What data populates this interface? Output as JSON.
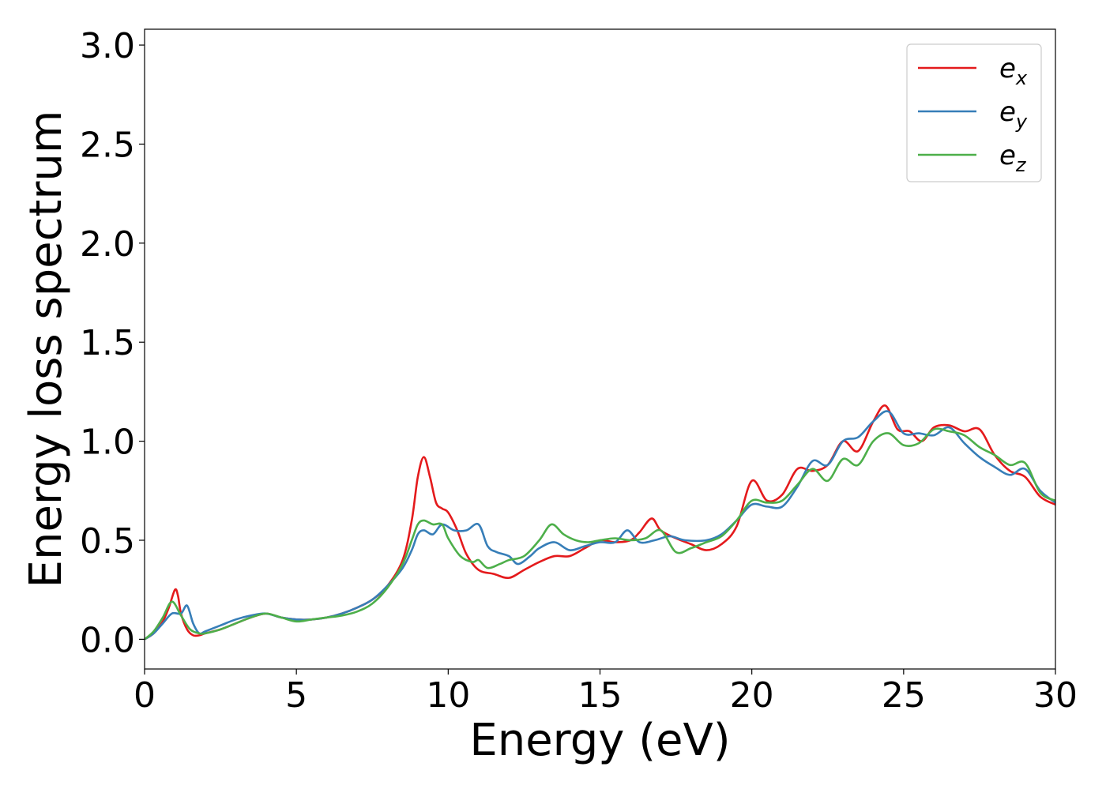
{
  "chart_data": {
    "type": "line",
    "title": "",
    "xlabel": "Energy (eV)",
    "ylabel": "Energy loss spectrum",
    "xlim": [
      0,
      30
    ],
    "ylim": [
      -0.15,
      3.08
    ],
    "xticks": [
      0,
      5,
      10,
      15,
      20,
      25,
      30
    ],
    "xtick_labels": [
      "0",
      "5",
      "10",
      "15",
      "20",
      "25",
      "30"
    ],
    "yticks": [
      0.0,
      0.5,
      1.0,
      1.5,
      2.0,
      2.5,
      3.0
    ],
    "ytick_labels": [
      "0.0",
      "0.5",
      "1.0",
      "1.5",
      "2.0",
      "2.5",
      "3.0"
    ],
    "grid": false,
    "legend_position": "top-right",
    "series": [
      {
        "name": "e_x",
        "legend_base": "e",
        "legend_sub": "x",
        "color": "#e41a1c",
        "x": [
          0,
          0.3,
          0.6,
          0.8,
          1.0,
          1.1,
          1.2,
          1.4,
          1.6,
          1.8,
          2.0,
          2.5,
          3.0,
          3.5,
          4.0,
          4.5,
          5.0,
          5.5,
          6.0,
          6.5,
          7.0,
          7.5,
          8.0,
          8.5,
          8.8,
          9.0,
          9.2,
          9.4,
          9.6,
          9.8,
          10.0,
          10.3,
          10.6,
          11.0,
          11.5,
          12.0,
          12.5,
          13.0,
          13.5,
          14.0,
          14.5,
          15.0,
          15.5,
          16.0,
          16.3,
          16.7,
          17.0,
          17.5,
          18.0,
          18.5,
          19.0,
          19.5,
          20.0,
          20.5,
          21.0,
          21.5,
          22.0,
          22.5,
          23.0,
          23.5,
          24.0,
          24.4,
          24.8,
          25.2,
          25.6,
          26.0,
          26.5,
          27.0,
          27.5,
          28.0,
          28.5,
          29.0,
          29.5,
          30.0
        ],
        "y": [
          0.0,
          0.03,
          0.09,
          0.16,
          0.25,
          0.22,
          0.13,
          0.05,
          0.02,
          0.02,
          0.03,
          0.05,
          0.08,
          0.11,
          0.13,
          0.11,
          0.1,
          0.1,
          0.11,
          0.13,
          0.16,
          0.2,
          0.27,
          0.4,
          0.6,
          0.82,
          0.92,
          0.82,
          0.69,
          0.66,
          0.64,
          0.55,
          0.43,
          0.35,
          0.33,
          0.31,
          0.35,
          0.39,
          0.42,
          0.42,
          0.46,
          0.5,
          0.49,
          0.5,
          0.54,
          0.61,
          0.55,
          0.51,
          0.48,
          0.45,
          0.48,
          0.57,
          0.8,
          0.7,
          0.73,
          0.86,
          0.85,
          0.88,
          1.0,
          0.95,
          1.1,
          1.18,
          1.06,
          1.05,
          1.0,
          1.07,
          1.08,
          1.05,
          1.06,
          0.93,
          0.85,
          0.82,
          0.72,
          0.68
        ]
      },
      {
        "name": "e_y",
        "legend_base": "e",
        "legend_sub": "y",
        "color": "#377eb8",
        "x": [
          0,
          0.3,
          0.6,
          0.9,
          1.2,
          1.4,
          1.6,
          1.8,
          2.0,
          2.5,
          3.0,
          3.5,
          4.0,
          4.5,
          5.0,
          5.5,
          6.0,
          6.5,
          7.0,
          7.5,
          8.0,
          8.5,
          8.8,
          9.0,
          9.2,
          9.5,
          9.8,
          10.2,
          10.6,
          11.0,
          11.3,
          11.6,
          12.0,
          12.3,
          12.7,
          13.0,
          13.5,
          14.0,
          14.5,
          15.0,
          15.5,
          15.9,
          16.3,
          16.8,
          17.3,
          17.8,
          18.5,
          19.0,
          19.5,
          20.0,
          20.5,
          21.0,
          21.5,
          22.0,
          22.5,
          23.0,
          23.5,
          24.0,
          24.5,
          25.0,
          25.5,
          26.0,
          26.5,
          27.0,
          27.5,
          28.0,
          28.5,
          29.0,
          29.5,
          30.0
        ],
        "y": [
          0.0,
          0.03,
          0.08,
          0.13,
          0.13,
          0.17,
          0.08,
          0.03,
          0.04,
          0.07,
          0.1,
          0.12,
          0.13,
          0.11,
          0.1,
          0.1,
          0.11,
          0.13,
          0.16,
          0.2,
          0.27,
          0.36,
          0.45,
          0.53,
          0.55,
          0.53,
          0.58,
          0.55,
          0.55,
          0.58,
          0.47,
          0.44,
          0.42,
          0.38,
          0.42,
          0.46,
          0.49,
          0.45,
          0.47,
          0.49,
          0.49,
          0.55,
          0.49,
          0.5,
          0.52,
          0.5,
          0.5,
          0.53,
          0.6,
          0.68,
          0.67,
          0.67,
          0.77,
          0.9,
          0.88,
          1.0,
          1.02,
          1.1,
          1.15,
          1.04,
          1.04,
          1.03,
          1.07,
          0.99,
          0.92,
          0.87,
          0.83,
          0.86,
          0.75,
          0.69
        ]
      },
      {
        "name": "e_z",
        "legend_base": "e",
        "legend_sub": "z",
        "color": "#4daf4a",
        "x": [
          0,
          0.3,
          0.6,
          0.9,
          1.2,
          1.5,
          1.8,
          2.0,
          2.5,
          3.0,
          3.5,
          4.0,
          4.5,
          5.0,
          5.5,
          6.0,
          6.5,
          7.0,
          7.5,
          8.0,
          8.5,
          8.8,
          9.0,
          9.2,
          9.5,
          9.8,
          10.0,
          10.4,
          10.8,
          11.0,
          11.3,
          11.7,
          12.0,
          12.5,
          13.0,
          13.4,
          13.8,
          14.2,
          14.6,
          15.0,
          15.5,
          16.0,
          16.5,
          17.0,
          17.5,
          18.0,
          18.5,
          19.0,
          19.5,
          20.0,
          20.5,
          21.0,
          21.5,
          22.0,
          22.5,
          23.0,
          23.5,
          24.0,
          24.5,
          25.0,
          25.5,
          26.0,
          26.5,
          27.0,
          27.5,
          28.0,
          28.5,
          29.0,
          29.5,
          30.0
        ],
        "y": [
          0.0,
          0.04,
          0.11,
          0.19,
          0.12,
          0.05,
          0.03,
          0.03,
          0.05,
          0.08,
          0.11,
          0.13,
          0.11,
          0.09,
          0.1,
          0.11,
          0.12,
          0.14,
          0.18,
          0.26,
          0.38,
          0.5,
          0.58,
          0.6,
          0.58,
          0.58,
          0.51,
          0.42,
          0.39,
          0.4,
          0.36,
          0.38,
          0.4,
          0.42,
          0.5,
          0.58,
          0.53,
          0.5,
          0.49,
          0.5,
          0.51,
          0.5,
          0.51,
          0.55,
          0.44,
          0.46,
          0.49,
          0.52,
          0.6,
          0.7,
          0.69,
          0.7,
          0.78,
          0.86,
          0.8,
          0.91,
          0.88,
          1.0,
          1.04,
          0.98,
          0.99,
          1.06,
          1.05,
          1.03,
          0.97,
          0.93,
          0.88,
          0.89,
          0.74,
          0.7
        ]
      }
    ]
  }
}
